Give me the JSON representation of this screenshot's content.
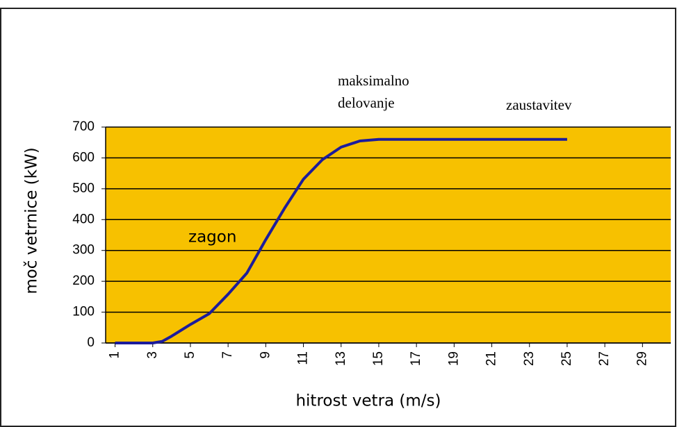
{
  "chart_data": {
    "type": "line",
    "x_label": "hitrost vetra  (m/s)",
    "y_label": "moč vetrnice  (kW)",
    "annotations": [
      [
        "maksimalno",
        "delovanje"
      ],
      [
        "zaustavitev"
      ],
      [
        "zagon"
      ]
    ],
    "series": [
      {
        "name": null,
        "color": "#1c1c9c",
        "x": [
          1,
          2,
          3,
          3.5,
          4,
          5,
          6,
          7,
          8,
          9,
          10,
          11,
          12,
          13,
          14,
          15,
          16,
          17,
          18,
          19,
          20,
          21,
          22,
          23,
          24,
          25
        ],
        "values": [
          0,
          0,
          0,
          5,
          22,
          60,
          95,
          158,
          227,
          335,
          437,
          531,
          594,
          635,
          655,
          660,
          660,
          660,
          660,
          660,
          660,
          660,
          660,
          660,
          660,
          660
        ]
      }
    ],
    "xlim": [
      0.5,
      30.5
    ],
    "xticks": [
      1,
      3,
      5,
      7,
      9,
      11,
      13,
      15,
      17,
      19,
      21,
      23,
      25,
      27,
      29
    ],
    "ylim": [
      0,
      700
    ],
    "yticks": [
      0,
      100,
      200,
      300,
      400,
      500,
      600,
      700
    ],
    "grid": true,
    "plot_background": "#f7c100"
  }
}
